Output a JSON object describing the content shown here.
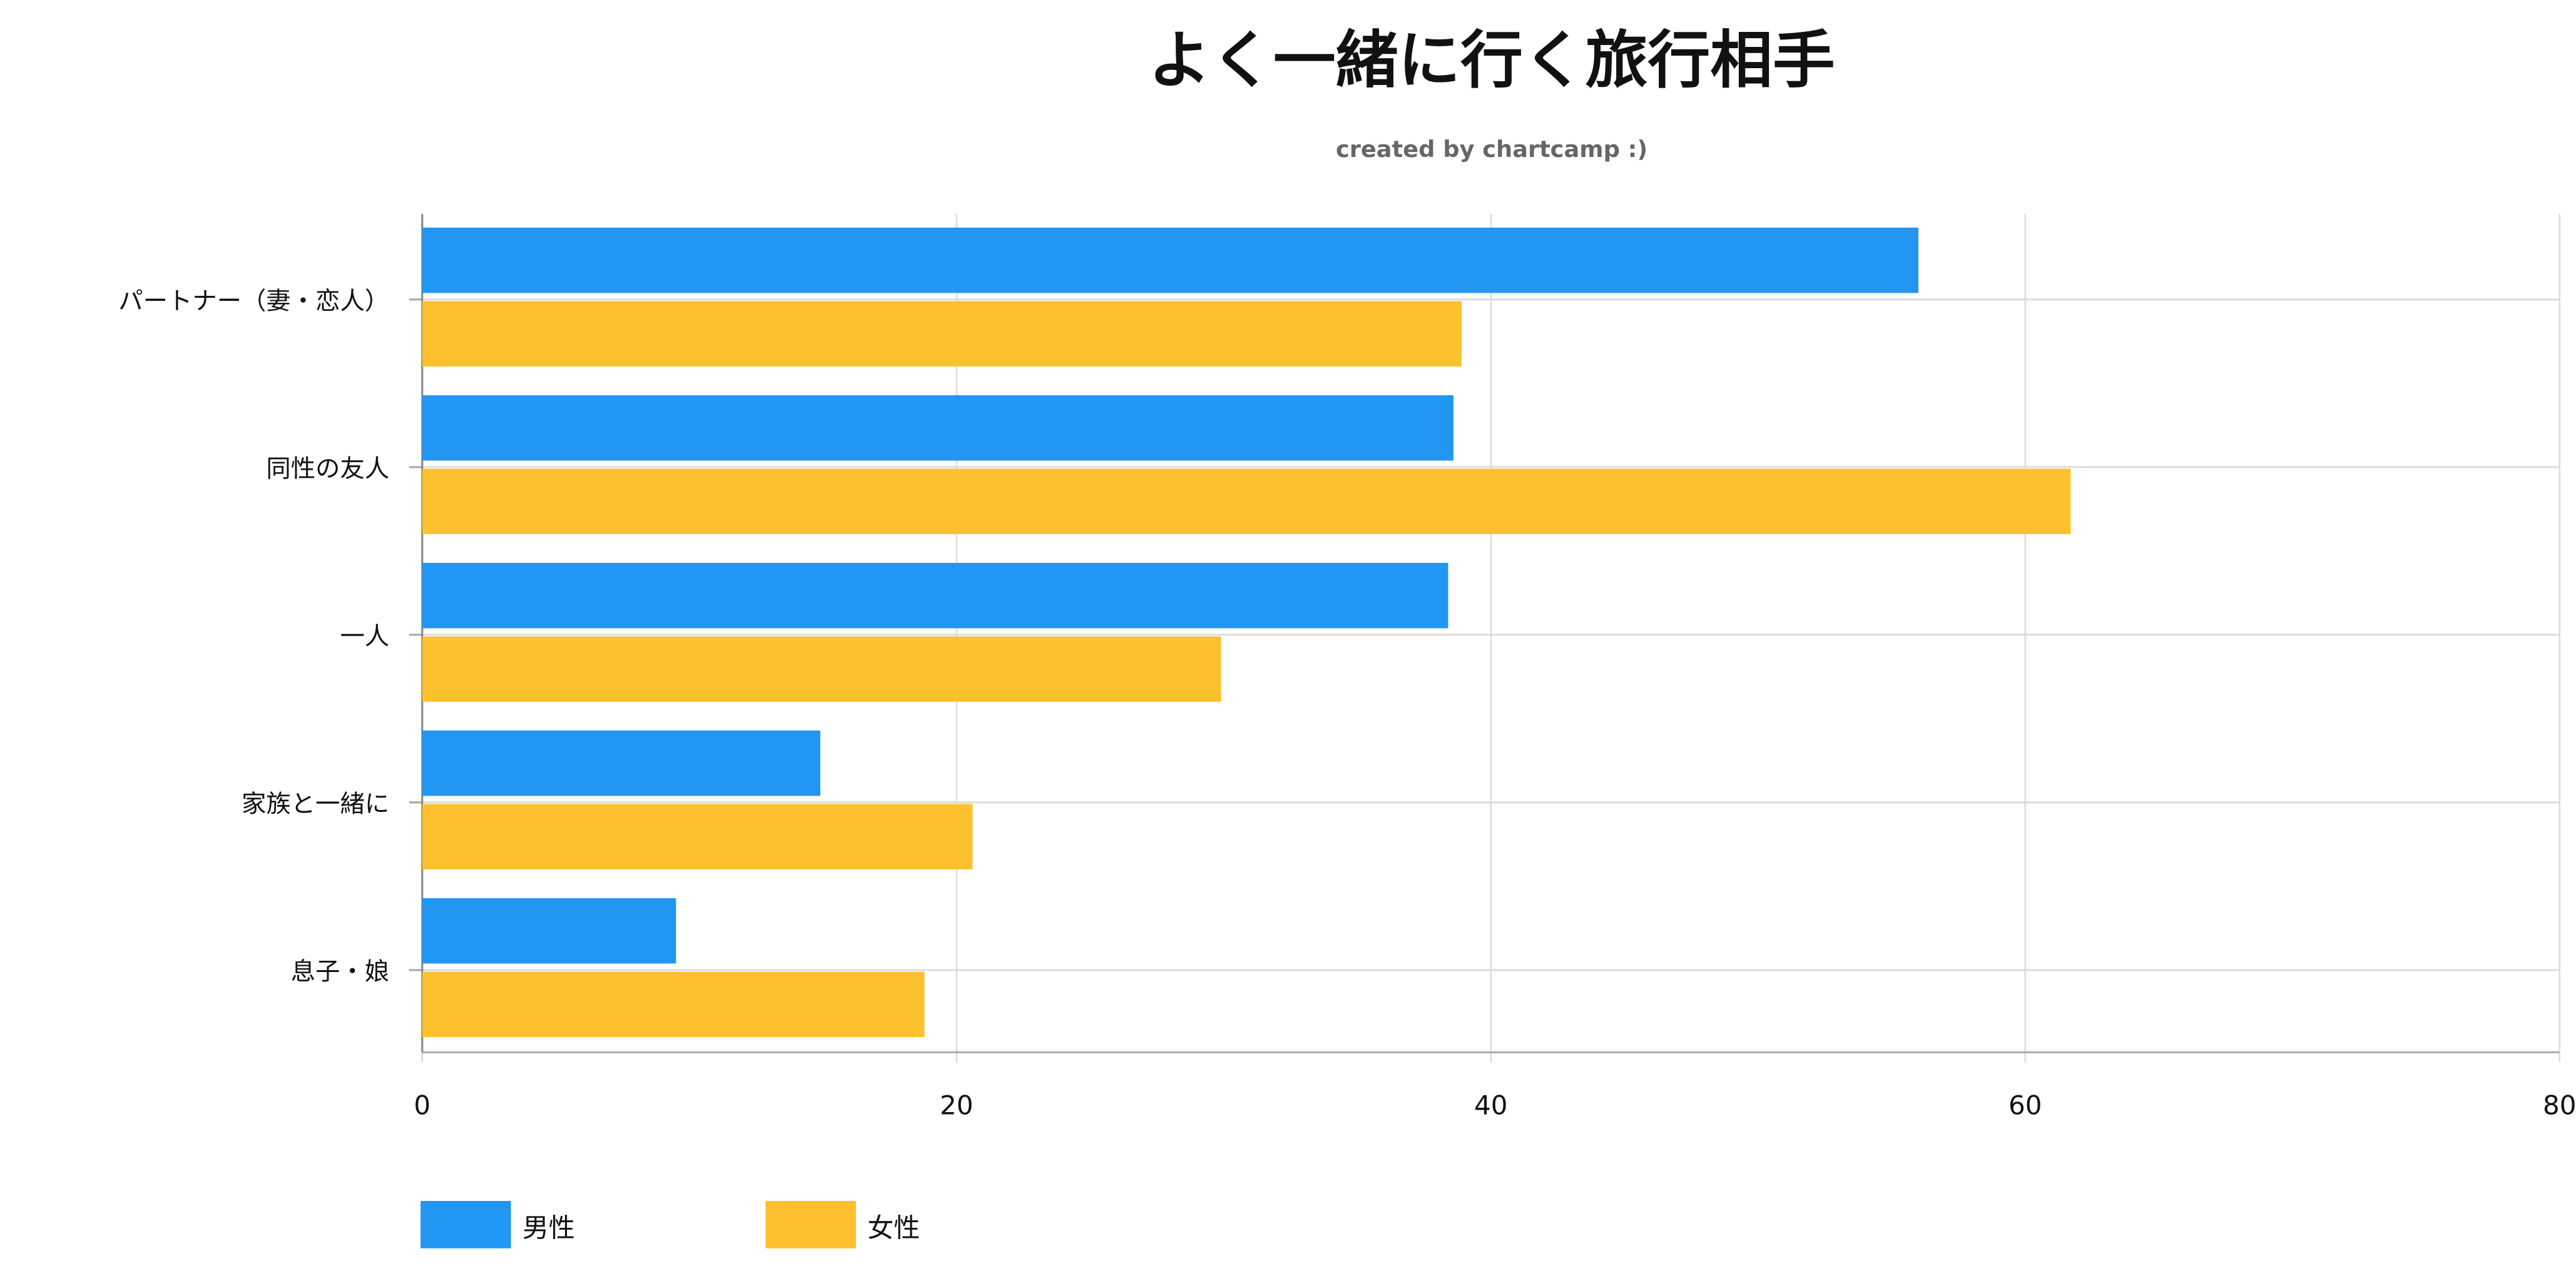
{
  "chart_data": {
    "type": "bar",
    "orientation": "horizontal",
    "title": "よく一緒に行く旅行相手",
    "subtitle": "created by chartcamp :)",
    "categories": [
      "パートナー（妻・恋人）",
      "同性の友人",
      "一人",
      "家族と一緒に",
      "息子・娘"
    ],
    "series": [
      {
        "name": "男性",
        "color": "#2196F3",
        "values": [
          56.0,
          38.6,
          38.4,
          14.9,
          9.5
        ]
      },
      {
        "name": "女性",
        "color": "#FDC02F",
        "values": [
          38.9,
          61.7,
          29.9,
          20.6,
          18.8
        ]
      }
    ],
    "xlim": [
      0,
      80
    ],
    "xticks": [
      "0",
      "20",
      "40",
      "60",
      "80"
    ],
    "xlabel": "",
    "ylabel": "",
    "grid": true,
    "legend_position": "bottom-left"
  }
}
